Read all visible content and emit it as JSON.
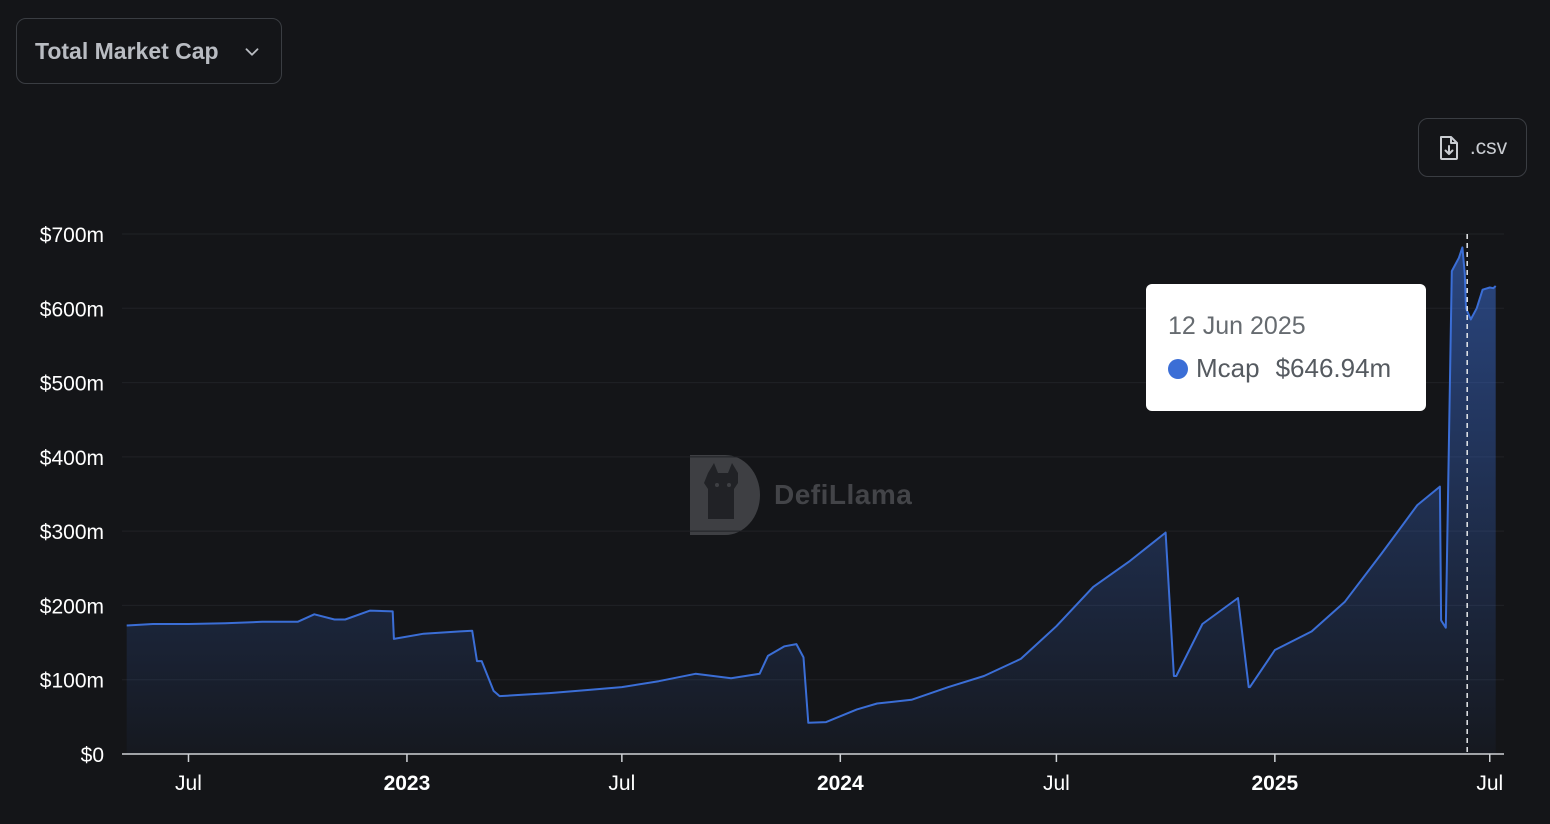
{
  "header": {
    "metric_select": "Total Market Cap",
    "csv_button": ".csv"
  },
  "icons": {
    "dropdown": "chevron-down-icon",
    "download": "file-download-icon",
    "watermark": "defillama-logo"
  },
  "watermark": {
    "text": "DefiLlama"
  },
  "tooltip": {
    "date": "12 Jun 2025",
    "series": "Mcap",
    "value": "$646.94m"
  },
  "colors": {
    "background": "#141518",
    "line": "#3b6ed6",
    "tooltip_dot": "#3b6ed6"
  },
  "chart_data": {
    "type": "area",
    "series": [
      {
        "name": "Mcap",
        "x": [
          "2022-05-10",
          "2022-06-01",
          "2022-07-01",
          "2022-08-01",
          "2022-09-01",
          "2022-09-10",
          "2022-10-01",
          "2022-10-15",
          "2022-11-01",
          "2022-11-10",
          "2022-12-01",
          "2022-12-20",
          "2022-12-21",
          "2023-01-15",
          "2023-02-15",
          "2023-02-25",
          "2023-03-01",
          "2023-03-05",
          "2023-03-15",
          "2023-03-20",
          "2023-04-01",
          "2023-05-01",
          "2023-06-01",
          "2023-07-01",
          "2023-08-01",
          "2023-09-01",
          "2023-10-01",
          "2023-10-25",
          "2023-11-01",
          "2023-11-15",
          "2023-11-25",
          "2023-12-01",
          "2023-12-05",
          "2023-12-20",
          "2024-01-15",
          "2024-02-01",
          "2024-03-01",
          "2024-04-01",
          "2024-05-01",
          "2024-06-01",
          "2024-07-01",
          "2024-08-01",
          "2024-09-01",
          "2024-10-01",
          "2024-10-08",
          "2024-10-10",
          "2024-11-01",
          "2024-12-01",
          "2024-12-10",
          "2024-12-11",
          "2025-01-01",
          "2025-02-01",
          "2025-03-01",
          "2025-04-01",
          "2025-05-01",
          "2025-05-20",
          "2025-05-21",
          "2025-05-25",
          "2025-05-30",
          "2025-06-05",
          "2025-06-08",
          "2025-06-10",
          "2025-06-11",
          "2025-06-15",
          "2025-06-20",
          "2025-06-25",
          "2025-07-01",
          "2025-07-04",
          "2025-07-06"
        ],
        "values": [
          173,
          175,
          175,
          176,
          178,
          178,
          178,
          188,
          181,
          181,
          193,
          192,
          155,
          162,
          165,
          166,
          125,
          125,
          85,
          78,
          79,
          82,
          86,
          90,
          98,
          108,
          102,
          108,
          132,
          145,
          148,
          130,
          42,
          43,
          60,
          68,
          73,
          90,
          105,
          128,
          172,
          225,
          260,
          298,
          105,
          105,
          175,
          210,
          90,
          90,
          140,
          165,
          205,
          270,
          335,
          360,
          180,
          170,
          650,
          668,
          682,
          646,
          600,
          585,
          600,
          625,
          628,
          627,
          630
        ]
      }
    ],
    "x_ticks": [
      "Jul",
      "2023",
      "Jul",
      "2024",
      "Jul",
      "2025",
      "Jul"
    ],
    "y_ticks": [
      "$0",
      "$100m",
      "$200m",
      "$300m",
      "$400m",
      "$500m",
      "$600m",
      "$700m"
    ],
    "ylim": [
      0,
      700
    ],
    "grid": true,
    "legend": "none"
  }
}
